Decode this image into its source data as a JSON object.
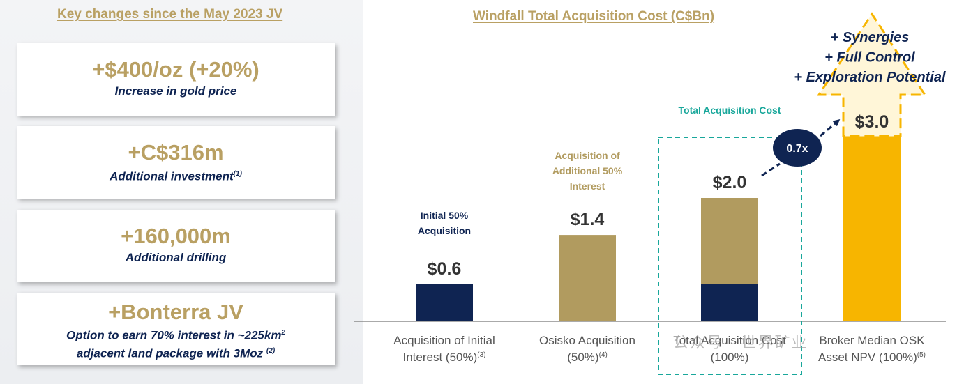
{
  "left_panel": {
    "heading": "Key changes since the May 2023 JV",
    "cards": [
      {
        "headline": "+$400/oz (+20%)",
        "sub": "Increase in gold price",
        "sup": ""
      },
      {
        "headline": "+C$316m",
        "sub": "Additional investment",
        "sup": "(1)"
      },
      {
        "headline": "+160,000m",
        "sub": "Additional drilling",
        "sup": ""
      },
      {
        "headline": "+Bonterra JV",
        "sub": "Option to earn 70% interest in ~225km",
        "sub_sup": "2",
        "sub2": "adjacent land package with 3Moz",
        "sup": "(2)"
      }
    ]
  },
  "chart_data": {
    "type": "bar",
    "title": "Windfall Total Acquisition Cost (C$Bn)",
    "unit": "C$Bn",
    "ylim": [
      0,
      3.5
    ],
    "categories": [
      {
        "line1": "Acquisition of Initial",
        "line2": "Interest (50%)",
        "note": "(3)"
      },
      {
        "line1": "Osisko Acquisition",
        "line2": "(50%)",
        "note": "(4)"
      },
      {
        "line1": "Total Acquisition Cost",
        "line2": "(100%)",
        "note": ""
      },
      {
        "line1": "Broker Median OSK",
        "line2": "Asset NPV (100%)",
        "note": "(5)"
      }
    ],
    "series": [
      {
        "name": "Initial 50% Acquisition",
        "color": "#0f2452",
        "values": [
          0.6,
          0,
          0.6,
          0
        ]
      },
      {
        "name": "Acquisition of Additional 50% Interest",
        "color": "#b19b5f",
        "values": [
          0,
          1.4,
          1.4,
          0
        ]
      },
      {
        "name": "Broker Median NPV",
        "color": "#f7b500",
        "values": [
          0,
          0,
          0,
          3.0
        ]
      }
    ],
    "value_labels": [
      "$0.6",
      "$1.4",
      "$2.0",
      "$3.0"
    ],
    "annotations": {
      "bar1_caption": [
        "Initial 50%",
        "Acquisition"
      ],
      "bar2_caption": [
        "Acquisition of",
        "Additional 50%",
        "Interest"
      ],
      "total_box_label": "Total Acquisition Cost",
      "ratio_badge": "0.7x",
      "upside": [
        "+ Synergies",
        "+ Full Control",
        "+ Exploration Potential"
      ]
    }
  },
  "colors": {
    "gold": "#b9a063",
    "navy": "#0f2452",
    "teal": "#19a79b",
    "yellow": "#f7b500"
  },
  "watermark": "公众号 · 世界矿业"
}
